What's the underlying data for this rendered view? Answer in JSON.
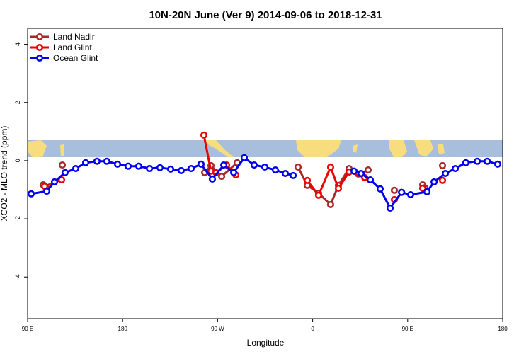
{
  "chart_data": {
    "type": "line",
    "title": "10N-20N June (Ver 9)   2014-09-06 to 2018-12-31",
    "xlabel": "Longitude",
    "ylabel": "XCO2 - MLO trend (ppm)",
    "xlim": [
      90,
      540
    ],
    "ylim": [
      -5.43,
      4.55
    ],
    "xticks": [
      {
        "value": 90,
        "label": "90 E"
      },
      180,
      {
        "value": 270,
        "label": "90 W"
      },
      {
        "value": 360,
        "label": "0"
      },
      {
        "value": 450,
        "label": "90 E"
      },
      {
        "value": 540,
        "label": "180"
      }
    ],
    "yticks": [
      -4,
      -2,
      0,
      2,
      4
    ],
    "legend": "top-left",
    "series": [
      {
        "name": "Land Nadir",
        "color": "#a52a2a",
        "x": [
          104.8,
          108.1,
          null,
          122.9,
          null,
          257.7,
          263.7,
          273.8,
          288.5,
          null,
          346.2,
          354.9,
          365.6,
          377,
          384.4,
          394.5,
          403.2,
          412.6,
          null,
          437.4,
          null,
          464.2,
          466.2,
          null,
          483
        ],
        "values": [
          -0.83,
          -0.95,
          null,
          -0.15,
          null,
          -0.41,
          -0.17,
          -0.54,
          -0.07,
          null,
          -0.22,
          -0.85,
          -1.12,
          -1.51,
          -0.85,
          -0.27,
          -0.46,
          -0.32,
          null,
          -1.02,
          null,
          -0.83,
          -0.93,
          null,
          -0.17
        ]
      },
      {
        "name": "Land Glint",
        "color": "#ee0000",
        "x": [
          106.1,
          122.2,
          null,
          257,
          263.7,
          268.4,
          278.5,
          287.2,
          null,
          354.9,
          365.6,
          377,
          384.4,
          394.5,
          409.2,
          null,
          437.4,
          null,
          464.2,
          null,
          483
        ],
        "values": [
          -0.88,
          -0.66,
          null,
          0.88,
          -0.36,
          -0.41,
          -0.15,
          -0.49,
          null,
          -0.68,
          -1.19,
          -0.22,
          -0.95,
          -0.39,
          -0.58,
          null,
          -1.34,
          null,
          -0.95,
          null,
          -0.68
        ]
      },
      {
        "name": "Ocean Glint",
        "color": "#0000ee",
        "x": [
          93.4,
          108.1,
          115.5,
          125.5,
          135.6,
          145,
          155.7,
          165.1,
          175.2,
          185.2,
          195.3,
          205.4,
          215.4,
          225.5,
          235.5,
          244.9,
          254.3,
          265,
          275.8,
          285.2,
          295.2,
          304.6,
          314.7,
          324.7,
          334.1,
          341.5,
          null,
          399.2,
          405.9,
          414.6,
          424,
          433.4,
          444.2,
          452.8,
          468.3,
          475,
          485.7,
          495.1,
          505.1,
          515.9,
          525.3,
          535.3
        ],
        "values": [
          -1.14,
          -1.05,
          -0.73,
          -0.41,
          -0.27,
          -0.07,
          -0.02,
          -0.02,
          -0.12,
          -0.19,
          -0.19,
          -0.27,
          -0.24,
          -0.29,
          -0.34,
          -0.27,
          -0.12,
          -0.63,
          -0.15,
          -0.41,
          0.1,
          -0.15,
          -0.22,
          -0.32,
          -0.44,
          -0.51,
          null,
          -0.36,
          -0.44,
          -0.66,
          -0.97,
          -1.63,
          -1.09,
          -1.17,
          -1.07,
          -0.73,
          -0.44,
          -0.27,
          -0.07,
          -0.02,
          -0.02,
          -0.12
        ]
      }
    ]
  }
}
